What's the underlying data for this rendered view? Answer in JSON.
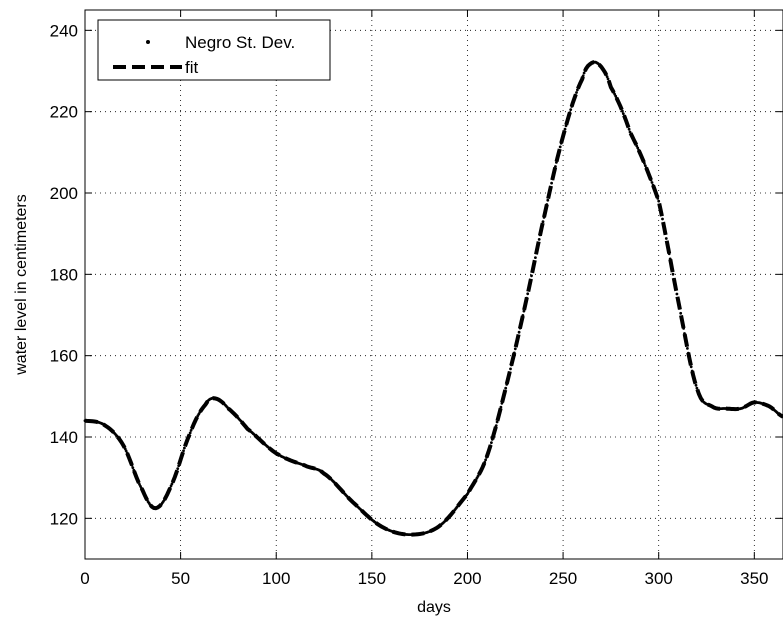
{
  "chart_data": {
    "type": "line",
    "xlabel": "days",
    "ylabel": "water level in centimeters",
    "xlim": [
      0,
      365
    ],
    "ylim": [
      110,
      245
    ],
    "xticks": [
      0,
      50,
      100,
      150,
      200,
      250,
      300,
      350
    ],
    "yticks": [
      120,
      140,
      160,
      180,
      200,
      220,
      240
    ],
    "grid": true,
    "legend_position": "top-left",
    "series": [
      {
        "name": "Negro St. Dev.",
        "style": "dots",
        "color": "#000000",
        "x": [
          0,
          10,
          20,
          30,
          37,
          45,
          55,
          63,
          68,
          75,
          85,
          100,
          115,
          125,
          140,
          155,
          170,
          185,
          200,
          210,
          220,
          230,
          240,
          250,
          260,
          265,
          270,
          275,
          285,
          300,
          310,
          320,
          328,
          335,
          343,
          350,
          358,
          365
        ],
        "y": [
          144,
          143,
          138,
          127,
          122.5,
          128,
          141,
          148,
          149.5,
          147,
          142,
          136,
          133,
          131,
          124,
          118,
          116,
          118,
          126,
          135,
          152,
          172,
          194,
          214,
          228,
          232,
          231,
          226,
          215,
          198,
          174,
          152,
          147.5,
          147,
          147,
          148.5,
          147.5,
          145
        ]
      },
      {
        "name": "fit",
        "style": "dashed",
        "color": "#000000",
        "x": [
          0,
          10,
          20,
          30,
          37,
          45,
          55,
          63,
          68,
          75,
          85,
          100,
          115,
          125,
          140,
          155,
          170,
          185,
          200,
          210,
          220,
          230,
          240,
          250,
          260,
          265,
          270,
          275,
          285,
          300,
          310,
          320,
          328,
          335,
          343,
          350,
          358,
          365
        ],
        "y": [
          144,
          143,
          138,
          127,
          122.5,
          128,
          141,
          148,
          149.5,
          147,
          142,
          136,
          133,
          131,
          124,
          118,
          116,
          118,
          126,
          135,
          152,
          172,
          194,
          214,
          228,
          232,
          231,
          226,
          215,
          198,
          174,
          152,
          147.5,
          147,
          147,
          148.5,
          147.5,
          145
        ]
      }
    ]
  }
}
